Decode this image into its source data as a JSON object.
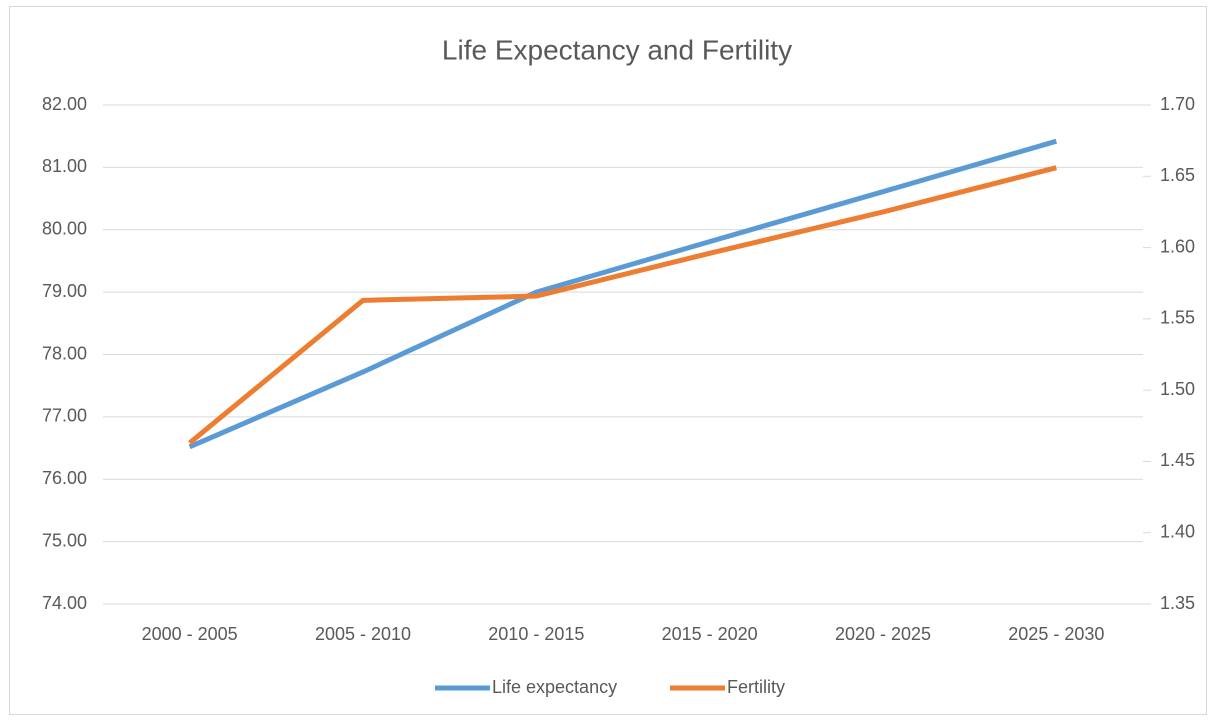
{
  "chart_data": {
    "type": "line",
    "title": "Life Expectancy and Fertility",
    "categories": [
      "2000 - 2005",
      "2005 - 2010",
      "2010 - 2015",
      "2015 - 2020",
      "2020 - 2025",
      "2025 - 2030"
    ],
    "series": [
      {
        "name": "Life expectancy",
        "color": "#5b9bd5",
        "values": [
          76.52,
          77.72,
          79.0,
          79.81,
          80.61,
          81.42
        ]
      },
      {
        "name": "Fertility",
        "color": "#ed7d31",
        "axis": "y2",
        "values": [
          1.463,
          1.563,
          1.566,
          1.596,
          1.625,
          1.656
        ]
      }
    ],
    "ylim": [
      74,
      82
    ],
    "yticks": [
      {
        "value": 74,
        "label": "74.00"
      },
      {
        "value": 75,
        "label": "75.00"
      },
      {
        "value": 76,
        "label": "76.00"
      },
      {
        "value": 77,
        "label": "77.00"
      },
      {
        "value": 78,
        "label": "78.00"
      },
      {
        "value": 79,
        "label": "79.00"
      },
      {
        "value": 80,
        "label": "80.00"
      },
      {
        "value": 81,
        "label": "81.00"
      },
      {
        "value": 82,
        "label": "82.00"
      }
    ],
    "y2lim": [
      1.35,
      1.7
    ],
    "y2ticks": [
      1.35,
      {
        "value": 1.4,
        "label": "1.40"
      },
      1.45,
      {
        "value": 1.5,
        "label": "1.50"
      },
      1.55,
      {
        "value": 1.6,
        "label": "1.60"
      },
      1.65,
      {
        "value": 1.7,
        "label": "1.70"
      }
    ],
    "grid": true,
    "legend": "bottom"
  }
}
